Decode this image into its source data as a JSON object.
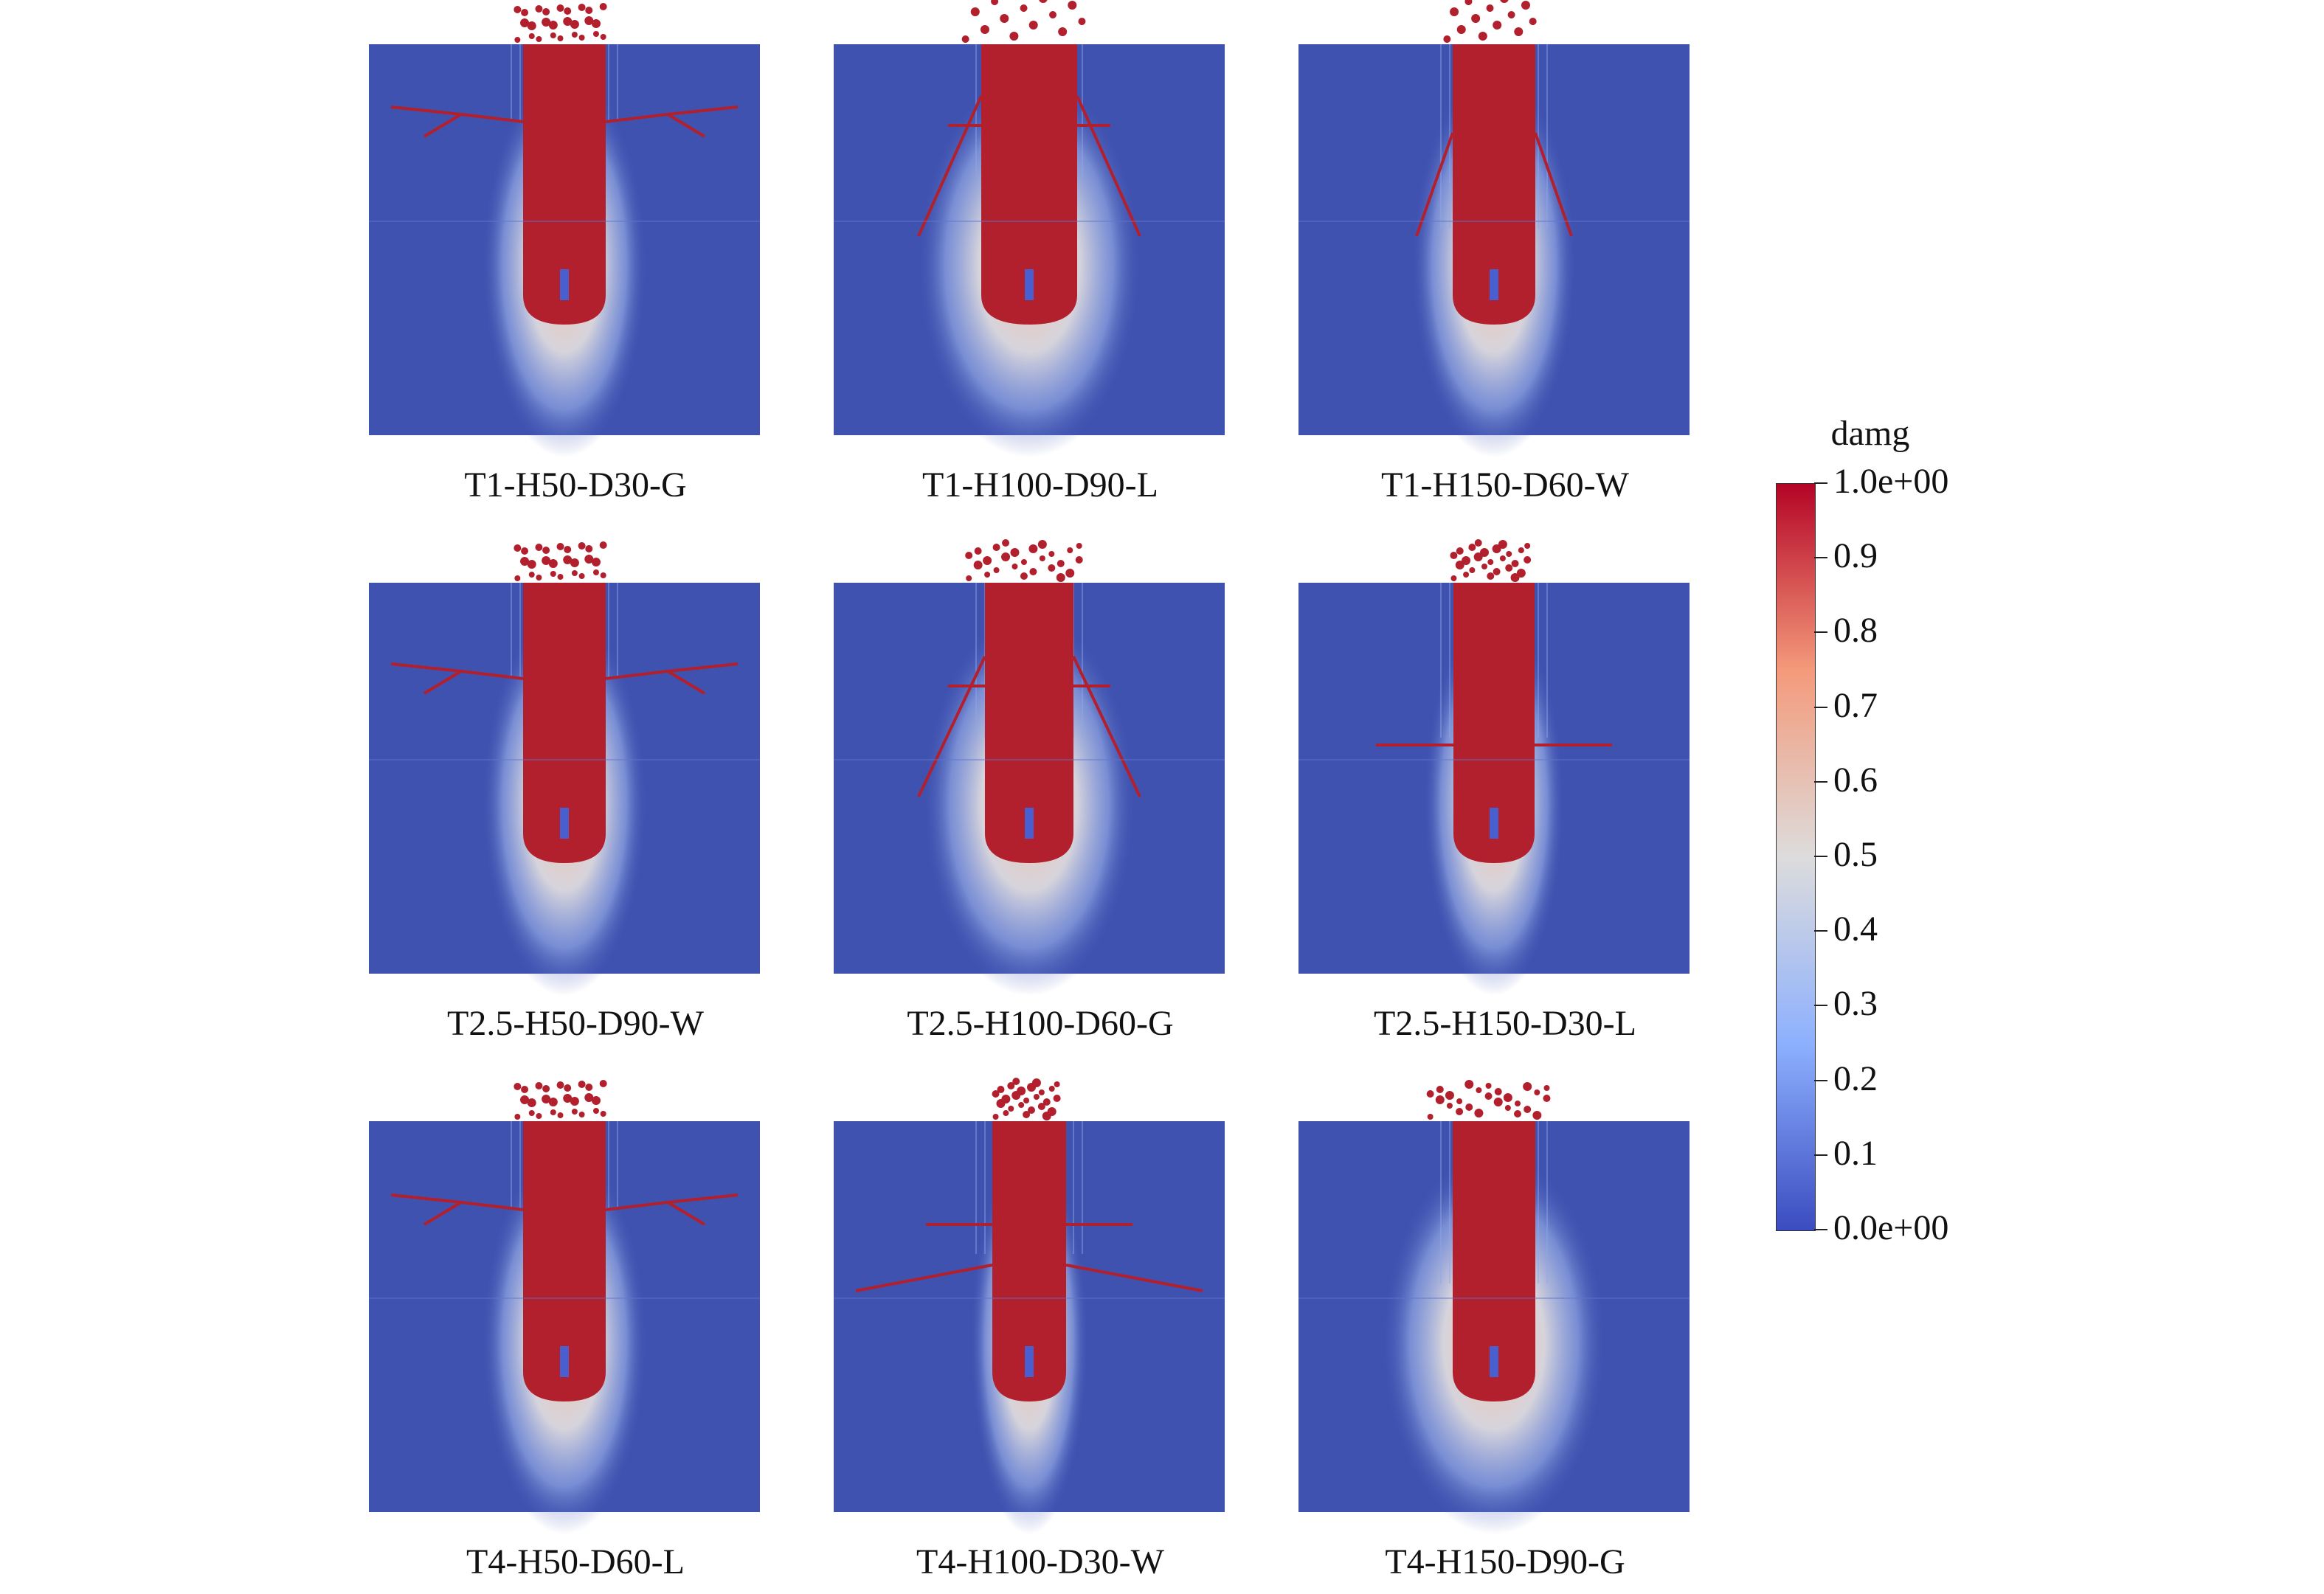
{
  "panels": [
    {
      "label": "T1-H50-D30-G"
    },
    {
      "label": "T1-H100-D90-L"
    },
    {
      "label": "T1-H150-D60-W"
    },
    {
      "label": "T2.5-H50-D90-W"
    },
    {
      "label": "T2.5-H100-D60-G"
    },
    {
      "label": "T2.5-H150-D30-L"
    },
    {
      "label": "T4-H50-D60-L"
    },
    {
      "label": "T4-H100-D30-W"
    },
    {
      "label": "T4-H150-D90-G"
    }
  ],
  "colorbar": {
    "title": "damg",
    "ticks": [
      {
        "value": 1.0,
        "label": "1.0e+00"
      },
      {
        "value": 0.9,
        "label": "0.9"
      },
      {
        "value": 0.8,
        "label": "0.8"
      },
      {
        "value": 0.7,
        "label": "0.7"
      },
      {
        "value": 0.6,
        "label": "0.6"
      },
      {
        "value": 0.5,
        "label": "0.5"
      },
      {
        "value": 0.4,
        "label": "0.4"
      },
      {
        "value": 0.3,
        "label": "0.3"
      },
      {
        "value": 0.2,
        "label": "0.2"
      },
      {
        "value": 0.1,
        "label": "0.1"
      },
      {
        "value": 0.0,
        "label": "0.0e+00"
      }
    ],
    "range": [
      0,
      1
    ],
    "colors": [
      "#3b4cc0",
      "#8db0fe",
      "#dddcdc",
      "#f49a7b",
      "#b40426"
    ]
  }
}
